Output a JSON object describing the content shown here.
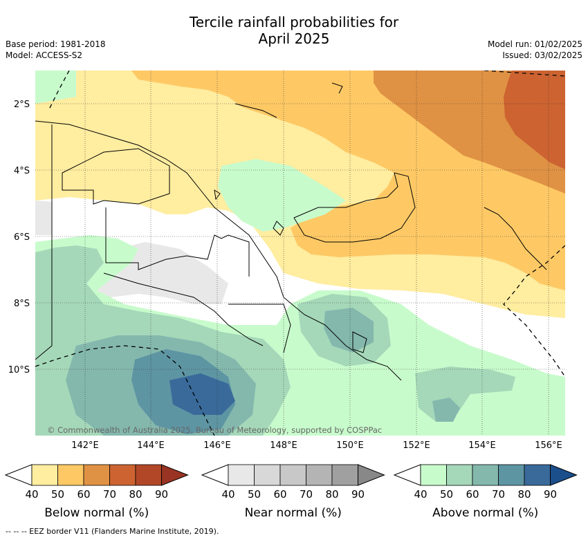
{
  "title_line1": "Tercile rainfall probabilities for",
  "title_line2": "April 2025",
  "meta": {
    "base_period": "Base period: 1981-2018",
    "model": "Model: ACCESS-S2",
    "model_run": "Model run: 01/02/2025",
    "issued": "Issued: 03/02/2025"
  },
  "map": {
    "lat_labels": [
      "2°S",
      "4°S",
      "6°S",
      "8°S",
      "10°S"
    ],
    "lon_labels": [
      "142°E",
      "144°E",
      "146°E",
      "148°E",
      "150°E",
      "152°E",
      "154°E",
      "156°E"
    ],
    "copyright": "© Commonwealth of Australia 2025, Bureau of Meteorology, supported by COSPPac"
  },
  "colorbars": [
    {
      "name": "below",
      "label": "Below normal (%)",
      "ticks": [
        "40",
        "50",
        "60",
        "70",
        "80",
        "90"
      ],
      "colors": [
        "#ffeda0",
        "#fec965",
        "#e09244",
        "#cc6331",
        "#b24727",
        "#993322"
      ]
    },
    {
      "name": "near",
      "label": "Near normal (%)",
      "ticks": [
        "40",
        "50",
        "60",
        "70",
        "80",
        "90"
      ],
      "colors": [
        "#e8e8e8",
        "#d8d8d8",
        "#c8c8c8",
        "#b4b4b4",
        "#a0a0a0",
        "#888888"
      ]
    },
    {
      "name": "above",
      "label": "Above normal (%)",
      "ticks": [
        "40",
        "50",
        "60",
        "70",
        "80",
        "90"
      ],
      "colors": [
        "#c8fbcc",
        "#a5d8b9",
        "#84b8ad",
        "#5e95a3",
        "#396a9a",
        "#1b4f8c"
      ]
    }
  ],
  "footer": "-- -- -- EEZ border V11 (Flanders Marine Institute, 2019)."
}
